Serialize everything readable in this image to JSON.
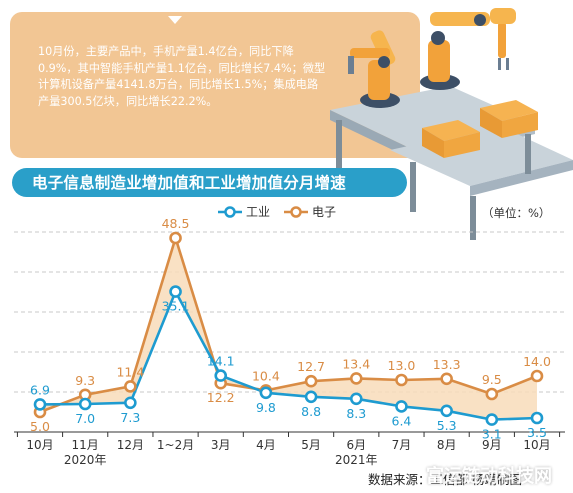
{
  "summary": "10月份，主要产品中，手机产量1.4亿台，同比下降0.9%，其中智能手机产量1.1亿台，同比增长7.4%；微型计算机设备产量4141.8万台，同比增长1.5%；集成电路产量300.5亿块，同比增长22.2%。",
  "colors": {
    "card": "#f2c694",
    "title_bar": "#2a9fc9",
    "industry": "#1e9bd0",
    "electronics": "#d98c45"
  },
  "chart_data": {
    "type": "line",
    "title": "电子信息制造业增加值和工业增加值分月增速",
    "unit": "（单位：%）",
    "categories": [
      "10月",
      "11月",
      "12月",
      "1~2月",
      "3月",
      "4月",
      "5月",
      "6月",
      "7月",
      "8月",
      "9月",
      "10月"
    ],
    "year_labels": [
      "2020年",
      "2021年"
    ],
    "series": [
      {
        "name": "工业",
        "values": [
          6.9,
          7.0,
          7.3,
          35.1,
          14.1,
          9.8,
          8.8,
          8.3,
          6.4,
          5.3,
          3.1,
          3.5
        ]
      },
      {
        "name": "电子",
        "values": [
          5.0,
          9.3,
          11.4,
          48.5,
          12.2,
          10.4,
          12.7,
          13.4,
          13.0,
          13.3,
          9.5,
          14.0
        ]
      }
    ],
    "ylim": [
      0,
      50
    ],
    "grid": true,
    "legend": "top-center"
  },
  "source": "数据来源：工信部 杨靖制图",
  "watermark": "富运链动科技网"
}
